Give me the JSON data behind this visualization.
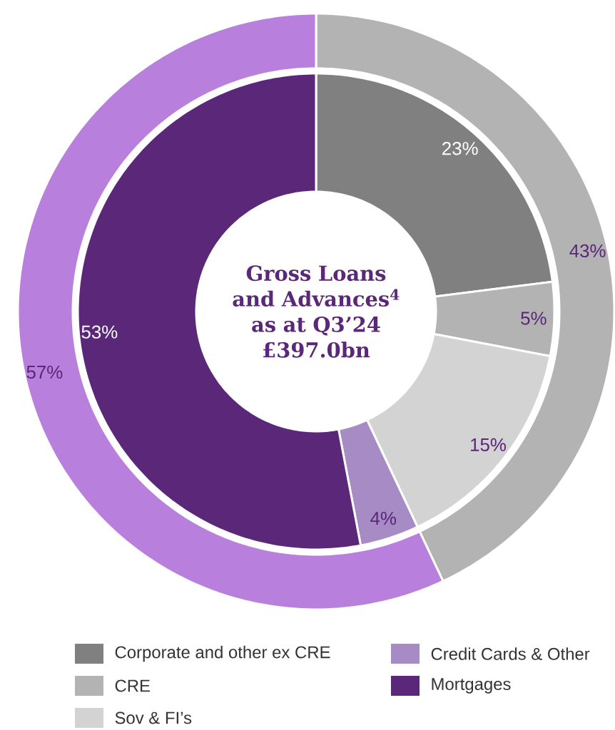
{
  "chart_data": [
    {
      "type": "donut",
      "categories": [
        null,
        null
      ],
      "values": [
        43,
        57
      ],
      "colors": [
        "#b3b3b3",
        "#b87fdc"
      ],
      "value_labels": [
        "43%",
        "57%"
      ]
    },
    {
      "type": "donut",
      "title": "Gross Loans and Advances$^{4}$ as at Q3’24 £397.0bn",
      "categories": [
        "Corporate and other ex CRE",
        "CRE",
        "Sov & FI’s",
        "Credit Cards & Other",
        "Mortgages"
      ],
      "values": [
        23,
        5,
        15,
        4,
        53
      ],
      "colors": [
        "#808080",
        "#b3b3b3",
        "#d3d3d3",
        "#a78bc4",
        "#5a2779"
      ],
      "value_labels": [
        "23%",
        "5%",
        "15%",
        "4%",
        "53%"
      ],
      "legend": "bottom"
    }
  ]
}
